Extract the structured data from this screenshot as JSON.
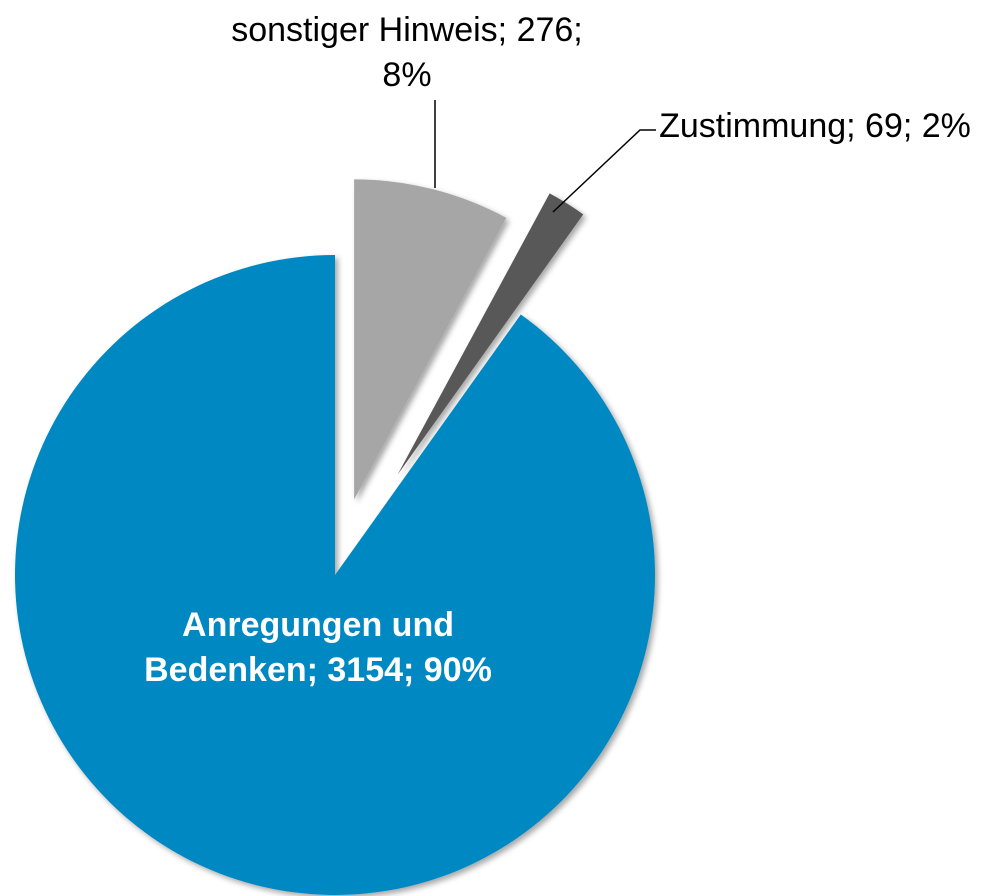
{
  "chart_data": {
    "type": "pie",
    "categories": [
      "sonstiger Hinweis",
      "Zustimmung",
      "Anregungen und Bedenken"
    ],
    "values": [
      276,
      69,
      3154
    ],
    "value_labels": [
      "sonstiger Hinweis; 276; 8%",
      "Zustimmung; 69; 2%",
      "Anregungen und Bedenken; 3154; 90%"
    ],
    "colors": [
      "#a6a6a6",
      "#595959",
      "#0088c2"
    ]
  }
}
